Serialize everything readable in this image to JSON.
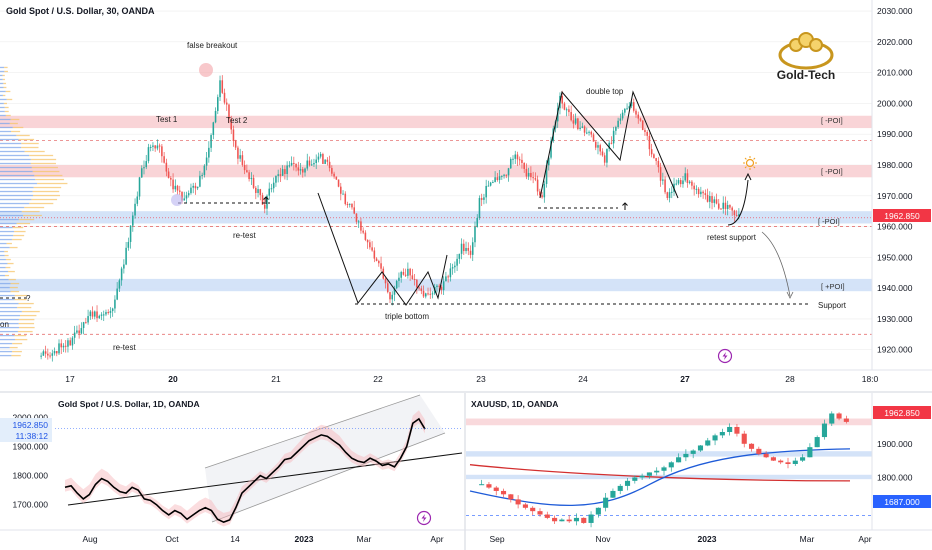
{
  "colors": {
    "up": "#26a69a",
    "down": "#ef5350",
    "brand_gold": "#c8961e",
    "poi_red": "#f8cfd3",
    "poi_blue": "#cfe0f7",
    "price_badge": "#f23645",
    "price_badge_blue": "#2962ff",
    "grid": "#eeeeee"
  },
  "icons": [
    "lightning-icon",
    "sun-icon",
    "up-arrow-icon",
    "gold-tech-logo"
  ],
  "logo": {
    "text": "Gold-Tech"
  },
  "chart_data": [
    {
      "type": "candlestick",
      "title": "Gold Spot / U.S. Dollar, 30, OANDA",
      "x_ticks": [
        "17",
        "20",
        "21",
        "22",
        "23",
        "24",
        "27",
        "28",
        "18:0"
      ],
      "y_ticks": [
        1920,
        1930,
        1940,
        1950,
        1960,
        1970,
        1980,
        1990,
        2000,
        2010,
        2020,
        2030
      ],
      "ylim": [
        1916,
        2031
      ],
      "last_price": "1962.850",
      "zones": [
        {
          "label": "[ -POI]",
          "from": 1992,
          "to": 1996,
          "color": "red"
        },
        {
          "label": "[ -POI]",
          "from": 1976,
          "to": 1980,
          "color": "red"
        },
        {
          "label": "[ -POI]",
          "from": 1961,
          "to": 1965,
          "color": "blue"
        },
        {
          "label": "[ +POI]",
          "from": 1939,
          "to": 1943,
          "color": "blue"
        }
      ],
      "dashed_levels": [
        1988,
        1960,
        1925
      ],
      "series_close": [
        1919,
        1918,
        1921,
        1922,
        1925,
        1930,
        1932,
        1930,
        1934,
        1945,
        1960,
        1975,
        1985,
        1987,
        1978,
        1972,
        1969,
        1972,
        1976,
        1990,
        2008,
        1995,
        1983,
        1978,
        1972,
        1967,
        1975,
        1978,
        1980,
        1978,
        1981,
        1983,
        1980,
        1975,
        1968,
        1964,
        1958,
        1952,
        1946,
        1937,
        1943,
        1946,
        1941,
        1937,
        1939,
        1941,
        1947,
        1953,
        1952,
        1968,
        1973,
        1976,
        1978,
        1983,
        1978,
        1976,
        1969,
        1988,
        2001,
        1996,
        1993,
        1991,
        1986,
        1982,
        1990,
        1998,
        2000,
        1995,
        1986,
        1978,
        1970,
        1974,
        1976,
        1972,
        1970,
        1968,
        1967,
        1965,
        1964
      ],
      "annotations": [
        {
          "text": "false breakout"
        },
        {
          "text": "Test 1"
        },
        {
          "text": "Test 2"
        },
        {
          "text": "re-test"
        },
        {
          "text": "re-test"
        },
        {
          "text": "double top"
        },
        {
          "text": "triple bottom"
        },
        {
          "text": "retest support"
        },
        {
          "text": "Support"
        },
        {
          "text": "on"
        },
        {
          "text": "?"
        }
      ]
    },
    {
      "type": "line",
      "title": "Gold Spot / U.S. Dollar, 1D, OANDA",
      "x_ticks": [
        "Aug",
        "Oct",
        "14",
        "2023",
        "Mar",
        "Apr"
      ],
      "y_ticks": [
        "2000.000",
        "1900.000",
        "1800.000",
        "1700.000"
      ],
      "ylim": [
        1620,
        2060
      ],
      "last_price": "1962.850",
      "time_label": "11:38:12",
      "series_close": [
        1760,
        1765,
        1740,
        1720,
        1735,
        1770,
        1790,
        1780,
        1760,
        1745,
        1740,
        1760,
        1750,
        1720,
        1715,
        1700,
        1680,
        1665,
        1680,
        1670,
        1650,
        1665,
        1680,
        1690,
        1680,
        1650,
        1640,
        1648,
        1690,
        1740,
        1760,
        1780,
        1800,
        1790,
        1810,
        1830,
        1855,
        1860,
        1880,
        1900,
        1920,
        1930,
        1940,
        1935,
        1920,
        1905,
        1880,
        1860,
        1850,
        1845,
        1860,
        1850,
        1835,
        1840,
        1830,
        1860,
        1900,
        1980,
        1995,
        1960
      ]
    },
    {
      "type": "candlestick",
      "title": "XAUUSD, 1D, OANDA",
      "x_ticks": [
        "Sep",
        "Nov",
        "2023",
        "Mar",
        "Apr"
      ],
      "y_ticks": [
        "2000.000",
        "1900.000",
        "1800.000"
      ],
      "ylim": [
        1650,
        2030
      ],
      "last_price": "1962.850",
      "lower_label": "1687.000",
      "series_close": [
        1780,
        1770,
        1760,
        1750,
        1735,
        1720,
        1710,
        1700,
        1690,
        1680,
        1670,
        1675,
        1670,
        1680,
        1665,
        1690,
        1710,
        1740,
        1760,
        1775,
        1790,
        1800,
        1805,
        1815,
        1820,
        1830,
        1845,
        1860,
        1870,
        1880,
        1895,
        1910,
        1925,
        1935,
        1950,
        1930,
        1900,
        1885,
        1870,
        1860,
        1850,
        1845,
        1840,
        1850,
        1860,
        1890,
        1920,
        1960,
        1990,
        1975,
        1965
      ]
    }
  ]
}
